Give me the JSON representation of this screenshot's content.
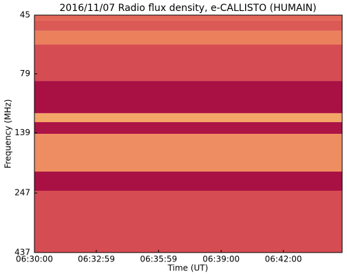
{
  "chart_data": {
    "type": "heatmap",
    "title": "2016/11/07  Radio flux density, e-CALLISTO (HUMAIN)",
    "xlabel": "Time (UT)",
    "ylabel": "Frequency (MHz)",
    "xlim": [
      0,
      890
    ],
    "xticks": [
      {
        "value": 0,
        "label": "06:30:00"
      },
      {
        "value": 179,
        "label": "06:32:59"
      },
      {
        "value": 359,
        "label": "06:35:59"
      },
      {
        "value": 540,
        "label": "06:39:00"
      },
      {
        "value": 720,
        "label": "06:42:00"
      }
    ],
    "ylim": [
      45,
      437
    ],
    "yscale": "log",
    "yinverted": true,
    "yticks": [
      45,
      79,
      139,
      247,
      437
    ],
    "y_edges": [
      45,
      47.4,
      52.3,
      59.7,
      84.6,
      115.1,
      125.4,
      140.3,
      201.3,
      241.9,
      437
    ],
    "values": [
      0.45,
      0.4,
      0.55,
      0.35,
      0.08,
      0.7,
      0.1,
      0.6,
      0.08,
      0.35
    ],
    "colormap": [
      "#9b0040",
      "#c8324e",
      "#e8745a",
      "#f6b26b",
      "#fde7a5"
    ]
  }
}
